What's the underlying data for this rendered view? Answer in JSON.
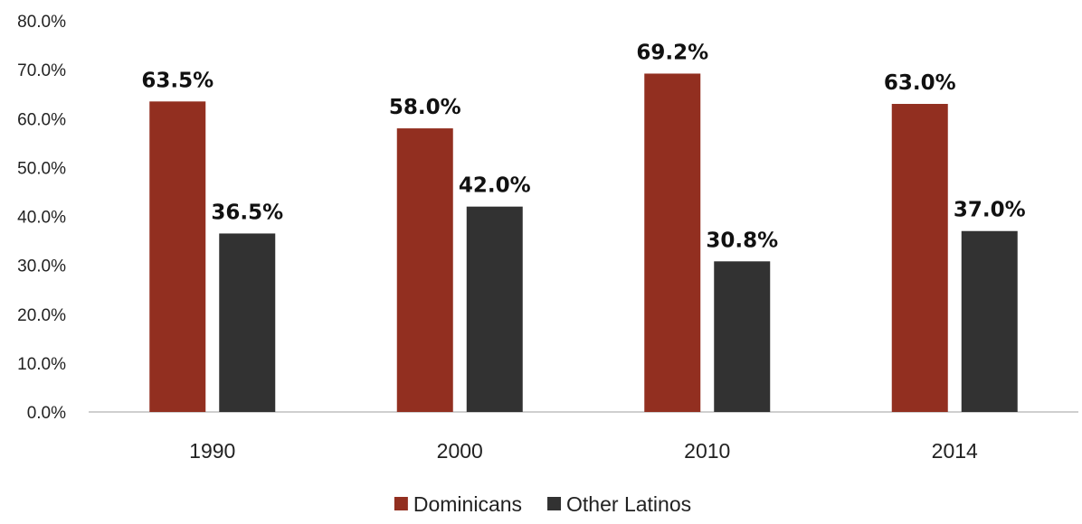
{
  "chart_data": {
    "type": "bar",
    "categories": [
      "1990",
      "2000",
      "2010",
      "2014"
    ],
    "series": [
      {
        "name": "Dominicans",
        "color": "#922f20",
        "values": [
          63.5,
          58.0,
          69.2,
          63.0
        ]
      },
      {
        "name": "Other Latinos",
        "color": "#323232",
        "values": [
          36.5,
          42.0,
          30.8,
          37.0
        ]
      }
    ],
    "data_labels": [
      [
        "63.5%",
        "58.0%",
        "69.2%",
        "63.0%"
      ],
      [
        "36.5%",
        "42.0%",
        "30.8%",
        "37.0%"
      ]
    ],
    "y_ticks": [
      "0.0%",
      "10.0%",
      "20.0%",
      "30.0%",
      "40.0%",
      "50.0%",
      "60.0%",
      "70.0%",
      "80.0%"
    ],
    "ylim": [
      0,
      80
    ],
    "title": "",
    "xlabel": "",
    "ylabel": "",
    "grid": false,
    "legend_position": "bottom"
  }
}
